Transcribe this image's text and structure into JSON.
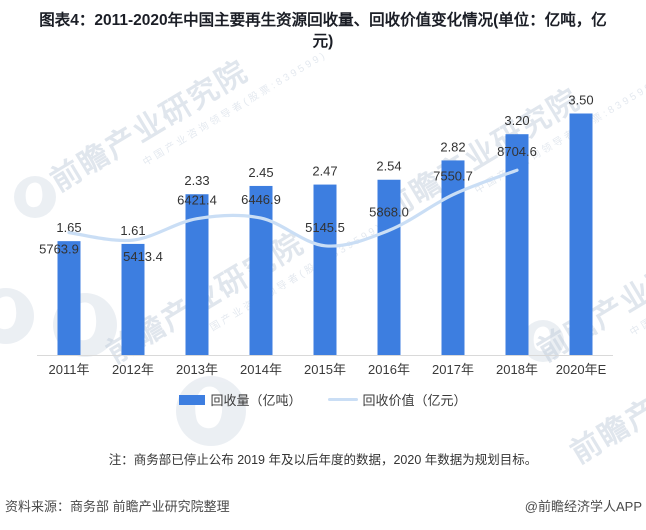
{
  "title": "图表4：2011-2020年中国主要再生资源回收量、回收价值变化情况(单位：亿吨，亿元)",
  "watermark": {
    "brand": "前瞻产业研究院",
    "tagline": "中国产业咨询领导者(股票:839599)"
  },
  "chart_data": {
    "type": "bar",
    "title": "图表4：2011-2020年中国主要再生资源回收量、回收价值变化情况(单位：亿吨，亿元)",
    "categories": [
      "2011年",
      "2012年",
      "2013年",
      "2014年",
      "2015年",
      "2016年",
      "2017年",
      "2018年",
      "2020年E"
    ],
    "series": [
      {
        "name": "回收量（亿吨）",
        "type": "bar",
        "axis": "left",
        "color": "#3d7ee0",
        "values": [
          1.65,
          1.61,
          2.33,
          2.45,
          2.47,
          2.54,
          2.82,
          3.2,
          3.5
        ],
        "labels": [
          "1.65",
          "1.61",
          "2.33",
          "2.45",
          "2.47",
          "2.54",
          "2.82",
          "3.20",
          "3.50"
        ]
      },
      {
        "name": "回收价值（亿元）",
        "type": "line",
        "axis": "right",
        "color": "#cadef5",
        "values": [
          5763.9,
          5413.4,
          6421.4,
          6446.9,
          5145.5,
          5868.0,
          7550.7,
          8704.6
        ],
        "labels": [
          "5763.9",
          "5413.4",
          "6421.4",
          "6446.9",
          "5145.5",
          "5868.0",
          "7550.7",
          "8704.6"
        ],
        "label_placement": [
          "below",
          "below",
          "above",
          "above",
          "above",
          "above",
          "above",
          "above"
        ],
        "label_dx": [
          -10,
          10,
          0,
          0,
          0,
          0,
          0,
          0
        ]
      }
    ],
    "axes": {
      "left": {
        "min": 0,
        "max": 4,
        "visible": false
      },
      "right": {
        "min": 0,
        "max": 13000,
        "visible": false
      }
    },
    "grid": false,
    "legend_position": "bottom",
    "axis_line_color": "#d9d9d9",
    "label_color": "#333333"
  },
  "note": "注：商务部已停止公布 2019 年及以后年度的数据，2020 年数据为规划目标。",
  "footer": {
    "source": "资料来源：商务部 前瞻产业研究院整理",
    "credit": "@前瞻经济学人APP"
  }
}
